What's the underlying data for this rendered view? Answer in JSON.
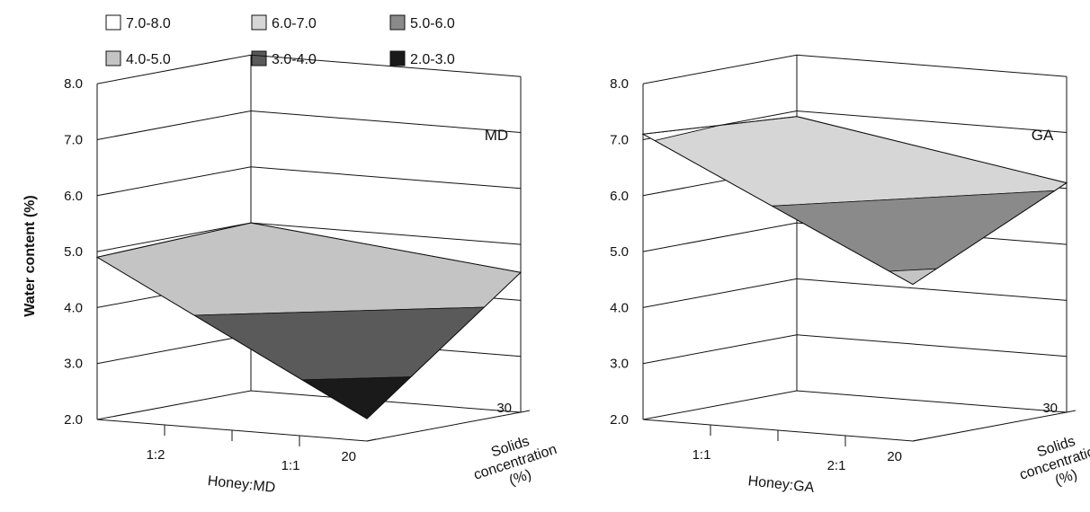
{
  "legend": [
    {
      "label": "7.0-8.0",
      "color": "#ffffff"
    },
    {
      "label": "6.0-7.0",
      "color": "#d6d6d6"
    },
    {
      "label": "5.0-6.0",
      "color": "#8a8a8a"
    },
    {
      "label": "4.0-5.0",
      "color": "#c4c4c4"
    },
    {
      "label": "3.0-4.0",
      "color": "#5a5a5a"
    },
    {
      "label": "2.0-3.0",
      "color": "#1a1a1a"
    }
  ],
  "ylabel": "Water content (%)",
  "chart_data": [
    {
      "type": "surface",
      "panel_label": "MD",
      "x_title": "Honey:MD",
      "x_categories": [
        "1:2",
        "1:1"
      ],
      "z_title": "Solids concentration (%)",
      "z_ticks": [
        "20",
        "30"
      ],
      "y_ticks": [
        "2.0",
        "3.0",
        "4.0",
        "5.0",
        "6.0",
        "7.0",
        "8.0"
      ],
      "ylim": [
        2.0,
        8.0
      ],
      "grid": true,
      "points": [
        {
          "x": "1:2",
          "z": "30",
          "y": 5.0
        },
        {
          "x": "1:1",
          "z": "30",
          "y": 4.5
        },
        {
          "x": "1:2",
          "z": "20",
          "y": 4.9
        },
        {
          "x": "1:1",
          "z": "20",
          "y": 2.4
        }
      ]
    },
    {
      "type": "surface",
      "panel_label": "GA",
      "x_title": "Honey:GA",
      "x_categories": [
        "1:1",
        "2:1"
      ],
      "z_title": "Solids concentration (%)",
      "z_ticks": [
        "20",
        "30"
      ],
      "y_ticks": [
        "2.0",
        "3.0",
        "4.0",
        "5.0",
        "6.0",
        "7.0",
        "8.0"
      ],
      "ylim": [
        2.0,
        8.0
      ],
      "grid": true,
      "points": [
        {
          "x": "1:1",
          "z": "30",
          "y": 6.9
        },
        {
          "x": "2:1",
          "z": "30",
          "y": 6.1
        },
        {
          "x": "1:1",
          "z": "20",
          "y": 7.1
        },
        {
          "x": "2:1",
          "z": "20",
          "y": 4.8
        }
      ]
    }
  ]
}
